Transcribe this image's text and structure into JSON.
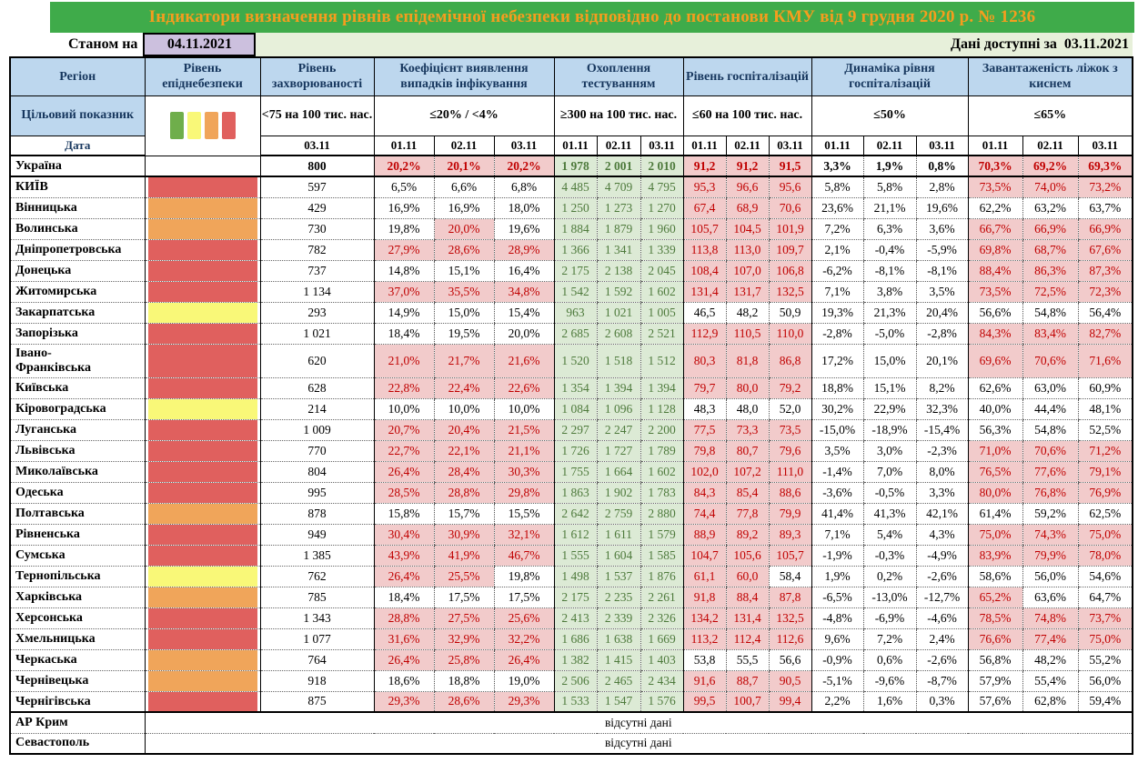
{
  "banner": {
    "title": "Індикатори визначення рівнів епідемічної небезпеки відповідно до постанови КМУ від 9 грудня 2020 р. № 1236"
  },
  "as_of": {
    "label": "Станом на",
    "date": "04.11.2021"
  },
  "available": {
    "label": "Дані доступні за",
    "date": "03.11.2021"
  },
  "colors": {
    "banner_bg": "#3fab4a",
    "banner_text": "#f59d1e",
    "date_box": "#ccc0de",
    "subbar_bg": "#e7f0da",
    "header_bg": "#bdd7ee",
    "bad_bg": "#f2cbcb",
    "bad_text": "#c00000",
    "good_bg": "#dcead5",
    "good_text": "#4e7a3c",
    "level_green": "#6fae4b",
    "level_yellow": "#f9f878",
    "level_orange": "#f0a55a",
    "level_red": "#e0605e"
  },
  "header": {
    "region": "Регіон",
    "level": "Рівень епіднебезпеки",
    "rate": "Рівень захворюваності",
    "coef": "Коефіцієнт виявлення випадків інфікування",
    "testing": "Охоплення тестуванням",
    "hosp": "Рівень госпіталізацій",
    "dyn": "Динаміка рівня госпіталізацій",
    "beds": "Завантаженість ліжок з киснем",
    "target_label": "Цільовий показник",
    "targets": {
      "rate": "<75 на 100 тис. нас.",
      "coef": "≤20% / <4%",
      "testing": "≥300 на 100 тис. нас.",
      "hosp": "≤60 на 100 тис. нас.",
      "dyn": "≤50%",
      "beds": "≤65%"
    },
    "date_label": "Дата",
    "rate_date": "03.11",
    "dates": [
      "01.11",
      "02.11",
      "03.11"
    ]
  },
  "legend_levels": [
    "green",
    "yellow",
    "orange",
    "red"
  ],
  "no_data_text": "відсутні дані",
  "rows": [
    {
      "region": "Україна",
      "level": "none",
      "bold": true,
      "rate": "800",
      "coef": [
        "20,2%",
        "20,1%",
        "20,2%"
      ],
      "coef_f": "BBB",
      "testing": [
        "1 978",
        "2 001",
        "2 010"
      ],
      "hosp": [
        "91,2",
        "91,2",
        "91,5"
      ],
      "hosp_f": "BBB",
      "dyn": [
        "3,3%",
        "1,9%",
        "0,8%"
      ],
      "beds": [
        "70,3%",
        "69,2%",
        "69,3%"
      ],
      "beds_f": "BBB",
      "sep": true
    },
    {
      "region": "КИЇВ",
      "level": "red",
      "rate": "597",
      "coef": [
        "6,5%",
        "6,6%",
        "6,8%"
      ],
      "coef_f": "NNN",
      "testing": [
        "4 485",
        "4 709",
        "4 795"
      ],
      "hosp": [
        "95,3",
        "96,6",
        "95,6"
      ],
      "hosp_f": "BBB",
      "dyn": [
        "5,8%",
        "5,8%",
        "2,8%"
      ],
      "beds": [
        "73,5%",
        "74,0%",
        "73,2%"
      ],
      "beds_f": "BBB"
    },
    {
      "region": "Вінницька",
      "level": "orange",
      "rate": "429",
      "coef": [
        "16,9%",
        "16,9%",
        "18,0%"
      ],
      "coef_f": "NNN",
      "testing": [
        "1 250",
        "1 273",
        "1 270"
      ],
      "hosp": [
        "67,4",
        "68,9",
        "70,6"
      ],
      "hosp_f": "BBB",
      "dyn": [
        "23,6%",
        "21,1%",
        "19,6%"
      ],
      "beds": [
        "62,2%",
        "63,2%",
        "63,7%"
      ],
      "beds_f": "NNN"
    },
    {
      "region": "Волинська",
      "level": "orange",
      "rate": "730",
      "coef": [
        "19,8%",
        "20,0%",
        "19,6%"
      ],
      "coef_f": "NBN",
      "testing": [
        "1 884",
        "1 879",
        "1 960"
      ],
      "hosp": [
        "105,7",
        "104,5",
        "101,9"
      ],
      "hosp_f": "BBB",
      "dyn": [
        "7,2%",
        "6,3%",
        "3,6%"
      ],
      "beds": [
        "66,7%",
        "66,9%",
        "66,9%"
      ],
      "beds_f": "BBB"
    },
    {
      "region": "Дніпропетровська",
      "level": "red",
      "rate": "782",
      "coef": [
        "27,9%",
        "28,6%",
        "28,9%"
      ],
      "coef_f": "BBB",
      "testing": [
        "1 366",
        "1 341",
        "1 339"
      ],
      "hosp": [
        "113,8",
        "113,0",
        "109,7"
      ],
      "hosp_f": "BBB",
      "dyn": [
        "2,1%",
        "-0,4%",
        "-5,9%"
      ],
      "beds": [
        "69,8%",
        "68,7%",
        "67,6%"
      ],
      "beds_f": "BBB"
    },
    {
      "region": "Донецька",
      "level": "red",
      "rate": "737",
      "coef": [
        "14,8%",
        "15,1%",
        "16,4%"
      ],
      "coef_f": "NNN",
      "testing": [
        "2 175",
        "2 138",
        "2 045"
      ],
      "hosp": [
        "108,4",
        "107,0",
        "106,8"
      ],
      "hosp_f": "BBB",
      "dyn": [
        "-6,2%",
        "-8,1%",
        "-8,1%"
      ],
      "beds": [
        "88,4%",
        "86,3%",
        "87,3%"
      ],
      "beds_f": "BBB"
    },
    {
      "region": "Житомирська",
      "level": "red",
      "rate": "1 134",
      "coef": [
        "37,0%",
        "35,5%",
        "34,8%"
      ],
      "coef_f": "BBB",
      "testing": [
        "1 542",
        "1 592",
        "1 602"
      ],
      "hosp": [
        "131,4",
        "131,7",
        "132,5"
      ],
      "hosp_f": "BBB",
      "dyn": [
        "7,1%",
        "3,8%",
        "3,5%"
      ],
      "beds": [
        "73,5%",
        "72,5%",
        "72,3%"
      ],
      "beds_f": "BBB"
    },
    {
      "region": "Закарпатська",
      "level": "yellow",
      "rate": "293",
      "coef": [
        "14,9%",
        "15,0%",
        "15,4%"
      ],
      "coef_f": "NNN",
      "testing": [
        "963",
        "1 021",
        "1 005"
      ],
      "hosp": [
        "46,5",
        "48,2",
        "50,9"
      ],
      "hosp_f": "NNN",
      "dyn": [
        "19,3%",
        "21,3%",
        "20,4%"
      ],
      "beds": [
        "56,6%",
        "54,8%",
        "56,4%"
      ],
      "beds_f": "NNN"
    },
    {
      "region": "Запорізька",
      "level": "red",
      "rate": "1 021",
      "coef": [
        "18,4%",
        "19,5%",
        "20,0%"
      ],
      "coef_f": "NNN",
      "testing": [
        "2 685",
        "2 608",
        "2 521"
      ],
      "hosp": [
        "112,9",
        "110,5",
        "110,0"
      ],
      "hosp_f": "BBB",
      "dyn": [
        "-2,8%",
        "-5,0%",
        "-2,8%"
      ],
      "beds": [
        "84,3%",
        "83,4%",
        "82,7%"
      ],
      "beds_f": "BBB"
    },
    {
      "region": "Івано-Франківська",
      "level": "red",
      "tall": true,
      "rate": "620",
      "coef": [
        "21,0%",
        "21,7%",
        "21,6%"
      ],
      "coef_f": "BBB",
      "testing": [
        "1 520",
        "1 518",
        "1 512"
      ],
      "hosp": [
        "80,3",
        "81,8",
        "86,8"
      ],
      "hosp_f": "BBB",
      "dyn": [
        "17,2%",
        "15,0%",
        "20,1%"
      ],
      "beds": [
        "69,6%",
        "70,6%",
        "71,6%"
      ],
      "beds_f": "BBB"
    },
    {
      "region": "Київська",
      "level": "red",
      "rate": "628",
      "coef": [
        "22,8%",
        "22,4%",
        "22,6%"
      ],
      "coef_f": "BBB",
      "testing": [
        "1 354",
        "1 394",
        "1 394"
      ],
      "hosp": [
        "79,7",
        "80,0",
        "79,2"
      ],
      "hosp_f": "BBB",
      "dyn": [
        "18,8%",
        "15,1%",
        "8,2%"
      ],
      "beds": [
        "62,6%",
        "63,0%",
        "60,9%"
      ],
      "beds_f": "NNN"
    },
    {
      "region": "Кіровоградська",
      "level": "yellow",
      "rate": "214",
      "coef": [
        "10,0%",
        "10,0%",
        "10,0%"
      ],
      "coef_f": "NNN",
      "testing": [
        "1 084",
        "1 096",
        "1 128"
      ],
      "hosp": [
        "48,3",
        "48,0",
        "52,0"
      ],
      "hosp_f": "NNN",
      "dyn": [
        "30,2%",
        "22,9%",
        "32,3%"
      ],
      "beds": [
        "40,0%",
        "44,4%",
        "48,1%"
      ],
      "beds_f": "NNN"
    },
    {
      "region": "Луганська",
      "level": "red",
      "rate": "1 009",
      "coef": [
        "20,7%",
        "20,4%",
        "21,5%"
      ],
      "coef_f": "BBB",
      "testing": [
        "2 297",
        "2 247",
        "2 200"
      ],
      "hosp": [
        "77,5",
        "73,3",
        "73,5"
      ],
      "hosp_f": "BBB",
      "dyn": [
        "-15,0%",
        "-18,9%",
        "-15,4%"
      ],
      "beds": [
        "56,3%",
        "54,8%",
        "52,5%"
      ],
      "beds_f": "NNN"
    },
    {
      "region": "Львівська",
      "level": "red",
      "rate": "770",
      "coef": [
        "22,7%",
        "22,1%",
        "21,1%"
      ],
      "coef_f": "BBB",
      "testing": [
        "1 726",
        "1 727",
        "1 789"
      ],
      "hosp": [
        "79,8",
        "80,7",
        "79,6"
      ],
      "hosp_f": "BBB",
      "dyn": [
        "3,5%",
        "3,0%",
        "-2,3%"
      ],
      "beds": [
        "71,0%",
        "70,6%",
        "71,2%"
      ],
      "beds_f": "BBB"
    },
    {
      "region": "Миколаївська",
      "level": "red",
      "rate": "804",
      "coef": [
        "26,4%",
        "28,4%",
        "30,3%"
      ],
      "coef_f": "BBB",
      "testing": [
        "1 755",
        "1 664",
        "1 602"
      ],
      "hosp": [
        "102,0",
        "107,2",
        "111,0"
      ],
      "hosp_f": "BBB",
      "dyn": [
        "-1,4%",
        "7,0%",
        "8,0%"
      ],
      "beds": [
        "76,5%",
        "77,6%",
        "79,1%"
      ],
      "beds_f": "BBB"
    },
    {
      "region": "Одеська",
      "level": "red",
      "rate": "995",
      "coef": [
        "28,5%",
        "28,8%",
        "29,8%"
      ],
      "coef_f": "BBB",
      "testing": [
        "1 863",
        "1 902",
        "1 783"
      ],
      "hosp": [
        "84,3",
        "85,4",
        "88,6"
      ],
      "hosp_f": "BBB",
      "dyn": [
        "-3,6%",
        "-0,5%",
        "3,3%"
      ],
      "beds": [
        "80,0%",
        "76,8%",
        "76,9%"
      ],
      "beds_f": "BBB"
    },
    {
      "region": "Полтавська",
      "level": "orange",
      "rate": "878",
      "coef": [
        "15,8%",
        "15,7%",
        "15,5%"
      ],
      "coef_f": "NNN",
      "testing": [
        "2 642",
        "2 759",
        "2 880"
      ],
      "hosp": [
        "74,4",
        "77,8",
        "79,9"
      ],
      "hosp_f": "BBB",
      "dyn": [
        "41,4%",
        "41,3%",
        "42,1%"
      ],
      "beds": [
        "61,4%",
        "59,2%",
        "62,5%"
      ],
      "beds_f": "NNN"
    },
    {
      "region": "Рівненська",
      "level": "red",
      "rate": "949",
      "coef": [
        "30,4%",
        "30,9%",
        "32,1%"
      ],
      "coef_f": "BBB",
      "testing": [
        "1 612",
        "1 611",
        "1 579"
      ],
      "hosp": [
        "88,9",
        "89,2",
        "89,3"
      ],
      "hosp_f": "BBB",
      "dyn": [
        "7,1%",
        "5,4%",
        "4,3%"
      ],
      "beds": [
        "75,0%",
        "74,3%",
        "75,0%"
      ],
      "beds_f": "BBB"
    },
    {
      "region": "Сумська",
      "level": "red",
      "rate": "1 385",
      "coef": [
        "43,9%",
        "41,9%",
        "46,7%"
      ],
      "coef_f": "BBB",
      "testing": [
        "1 555",
        "1 604",
        "1 585"
      ],
      "hosp": [
        "104,7",
        "105,6",
        "105,7"
      ],
      "hosp_f": "BBB",
      "dyn": [
        "-1,9%",
        "-0,3%",
        "-4,9%"
      ],
      "beds": [
        "83,9%",
        "79,9%",
        "78,0%"
      ],
      "beds_f": "BBB"
    },
    {
      "region": "Тернопільська",
      "level": "yellow",
      "rate": "762",
      "coef": [
        "26,4%",
        "25,5%",
        "19,8%"
      ],
      "coef_f": "BBN",
      "testing": [
        "1 498",
        "1 537",
        "1 876"
      ],
      "hosp": [
        "61,1",
        "60,0",
        "58,4"
      ],
      "hosp_f": "BBN",
      "dyn": [
        "1,9%",
        "0,2%",
        "-2,6%"
      ],
      "beds": [
        "58,6%",
        "56,0%",
        "54,6%"
      ],
      "beds_f": "NNN"
    },
    {
      "region": "Харківська",
      "level": "orange",
      "rate": "785",
      "coef": [
        "18,4%",
        "17,5%",
        "17,5%"
      ],
      "coef_f": "NNN",
      "testing": [
        "2 175",
        "2 235",
        "2 261"
      ],
      "hosp": [
        "91,8",
        "88,4",
        "87,8"
      ],
      "hosp_f": "BBB",
      "dyn": [
        "-6,5%",
        "-13,0%",
        "-12,7%"
      ],
      "beds": [
        "65,2%",
        "63,6%",
        "64,7%"
      ],
      "beds_f": "BNN"
    },
    {
      "region": "Херсонська",
      "level": "red",
      "rate": "1 343",
      "coef": [
        "28,8%",
        "27,5%",
        "25,6%"
      ],
      "coef_f": "BBB",
      "testing": [
        "2 413",
        "2 339",
        "2 326"
      ],
      "hosp": [
        "134,2",
        "131,4",
        "132,5"
      ],
      "hosp_f": "BBB",
      "dyn": [
        "-4,8%",
        "-6,9%",
        "-4,6%"
      ],
      "beds": [
        "78,5%",
        "74,8%",
        "73,7%"
      ],
      "beds_f": "BBB"
    },
    {
      "region": "Хмельницька",
      "level": "red",
      "rate": "1 077",
      "coef": [
        "31,6%",
        "32,9%",
        "32,2%"
      ],
      "coef_f": "BBB",
      "testing": [
        "1 686",
        "1 638",
        "1 669"
      ],
      "hosp": [
        "113,2",
        "112,4",
        "112,6"
      ],
      "hosp_f": "BBB",
      "dyn": [
        "9,6%",
        "7,2%",
        "2,4%"
      ],
      "beds": [
        "76,6%",
        "77,4%",
        "75,0%"
      ],
      "beds_f": "BBB"
    },
    {
      "region": "Черкаська",
      "level": "orange",
      "rate": "764",
      "coef": [
        "26,4%",
        "25,8%",
        "26,4%"
      ],
      "coef_f": "BBB",
      "testing": [
        "1 382",
        "1 415",
        "1 403"
      ],
      "hosp": [
        "53,8",
        "55,5",
        "56,6"
      ],
      "hosp_f": "NNN",
      "dyn": [
        "-0,9%",
        "0,6%",
        "-2,6%"
      ],
      "beds": [
        "56,8%",
        "48,2%",
        "55,2%"
      ],
      "beds_f": "NNN"
    },
    {
      "region": "Чернівецька",
      "level": "orange",
      "rate": "918",
      "coef": [
        "18,6%",
        "18,8%",
        "19,0%"
      ],
      "coef_f": "NNN",
      "testing": [
        "2 506",
        "2 465",
        "2 434"
      ],
      "hosp": [
        "91,6",
        "88,7",
        "90,5"
      ],
      "hosp_f": "BBB",
      "dyn": [
        "-5,1%",
        "-9,6%",
        "-8,7%"
      ],
      "beds": [
        "57,9%",
        "55,4%",
        "56,0%"
      ],
      "beds_f": "NNN"
    },
    {
      "region": "Чернігівська",
      "level": "red",
      "rate": "875",
      "coef": [
        "29,3%",
        "28,6%",
        "29,3%"
      ],
      "coef_f": "BBB",
      "testing": [
        "1 533",
        "1 547",
        "1 576"
      ],
      "hosp": [
        "99,5",
        "100,7",
        "99,4"
      ],
      "hosp_f": "BBB",
      "dyn": [
        "2,2%",
        "1,6%",
        "0,3%"
      ],
      "beds": [
        "57,6%",
        "62,8%",
        "59,4%"
      ],
      "beds_f": "NNN",
      "sep": true
    }
  ],
  "no_data_rows": [
    {
      "region": "АР Крим"
    },
    {
      "region": "Севастополь"
    }
  ]
}
